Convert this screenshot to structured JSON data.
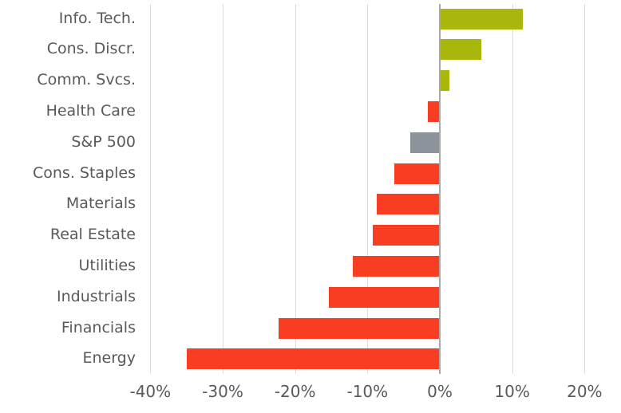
{
  "chart_data": {
    "type": "bar",
    "orientation": "horizontal",
    "title": "",
    "xlabel": "",
    "ylabel": "",
    "unit": "%",
    "xlim": [
      -40,
      25
    ],
    "grid": "vertical",
    "legend_position": "none",
    "categories": [
      "Info. Tech.",
      "Cons. Discr.",
      "Comm. Svcs.",
      "Health Care",
      "S&P 500",
      "Cons. Staples",
      "Materials",
      "Real Estate",
      "Utilities",
      "Industrials",
      "Financials",
      "Energy"
    ],
    "values": [
      11.4,
      5.6,
      1.2,
      -1.5,
      -4.0,
      -6.2,
      -8.6,
      -9.2,
      -11.9,
      -15.2,
      -22.2,
      -34.9
    ],
    "items": [
      {
        "label": "Info. Tech.",
        "value": 11.4,
        "color": "#a9b70c",
        "role": "positive"
      },
      {
        "label": "Cons. Discr.",
        "value": 5.6,
        "color": "#a9b70c",
        "role": "positive"
      },
      {
        "label": "Comm. Svcs.",
        "value": 1.2,
        "color": "#a9b70c",
        "role": "positive"
      },
      {
        "label": "Health Care",
        "value": -1.5,
        "color": "#f93d23",
        "role": "negative"
      },
      {
        "label": "S&P 500",
        "value": -4.0,
        "color": "#8c939b",
        "role": "benchmark"
      },
      {
        "label": "Cons. Staples",
        "value": -6.2,
        "color": "#f93d23",
        "role": "negative"
      },
      {
        "label": "Materials",
        "value": -8.6,
        "color": "#f93d23",
        "role": "negative"
      },
      {
        "label": "Real Estate",
        "value": -9.2,
        "color": "#f93d23",
        "role": "negative"
      },
      {
        "label": "Utilities",
        "value": -11.9,
        "color": "#f93d23",
        "role": "negative"
      },
      {
        "label": "Industrials",
        "value": -15.2,
        "color": "#f93d23",
        "role": "negative"
      },
      {
        "label": "Financials",
        "value": -22.2,
        "color": "#f93d23",
        "role": "negative"
      },
      {
        "label": "Energy",
        "value": -34.9,
        "color": "#f93d23",
        "role": "negative"
      }
    ],
    "x_ticks": [
      {
        "value": -40,
        "label": "-40%"
      },
      {
        "value": -30,
        "label": "-30%"
      },
      {
        "value": -20,
        "label": "-20%"
      },
      {
        "value": -10,
        "label": "-10%"
      },
      {
        "value": 0,
        "label": "0%"
      },
      {
        "value": 10,
        "label": "10%"
      },
      {
        "value": 20,
        "label": "20%"
      }
    ],
    "palette": {
      "positive": "#a9b70c",
      "negative": "#f93d23",
      "benchmark": "#8c939b",
      "gridline": "#dcdcdc",
      "zero_line": "#a9a9a9",
      "text": "#595959",
      "background": "#ffffff"
    }
  }
}
